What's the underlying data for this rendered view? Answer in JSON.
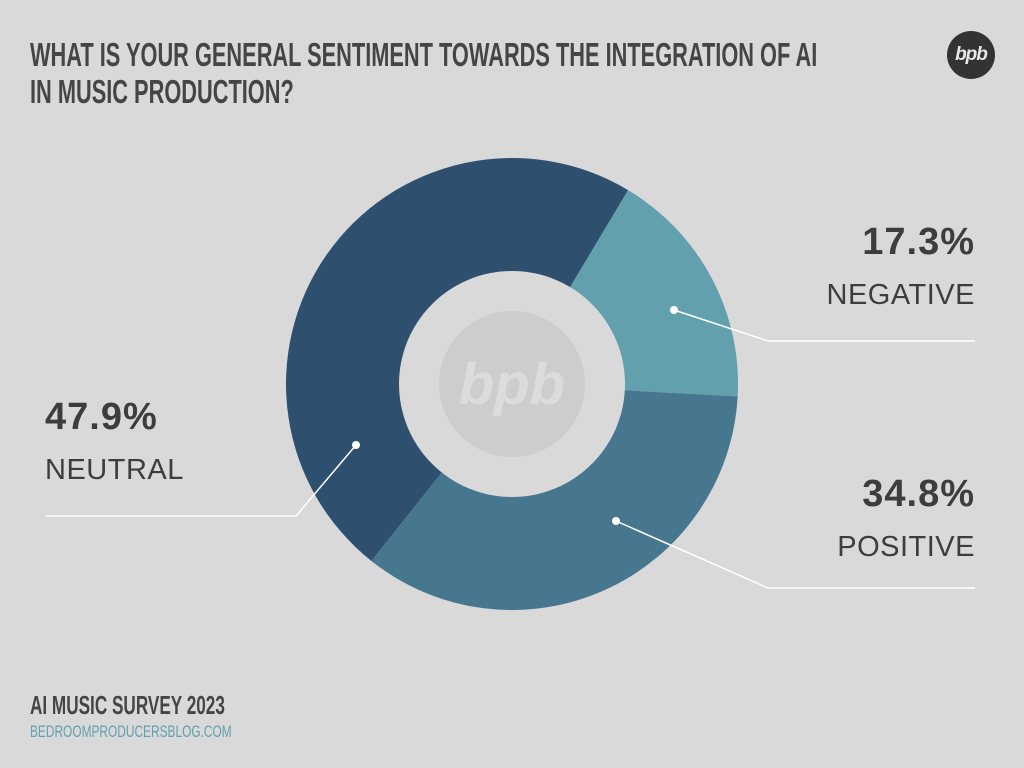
{
  "title_line1": "WHAT IS YOUR GENERAL SENTIMENT TOWARDS THE INTEGRATION OF AI",
  "title_line2": "IN MUSIC PRODUCTION?",
  "logo_text": "bpb",
  "footer": {
    "survey": "AI MUSIC SURVEY 2023",
    "site": "BEDROOMPRODUCERSBLOG.COM"
  },
  "colors": {
    "background": "#d9d9d9",
    "negative": "#62a0ae",
    "positive": "#46778f",
    "neutral": "#2f4f6e",
    "text": "#3d3d3d",
    "site": "#62a0ae"
  },
  "chart_data": {
    "type": "pie",
    "variant": "donut",
    "title": "WHAT IS YOUR GENERAL SENTIMENT TOWARDS THE INTEGRATION OF AI IN MUSIC PRODUCTION?",
    "categories": [
      "NEGATIVE",
      "POSITIVE",
      "NEUTRAL"
    ],
    "values": [
      17.3,
      34.8,
      47.9
    ],
    "labels": [
      "17.3%",
      "34.8%",
      "47.9%"
    ],
    "unit": "%",
    "colors": [
      "#62a0ae",
      "#46778f",
      "#2f4f6e"
    ]
  }
}
